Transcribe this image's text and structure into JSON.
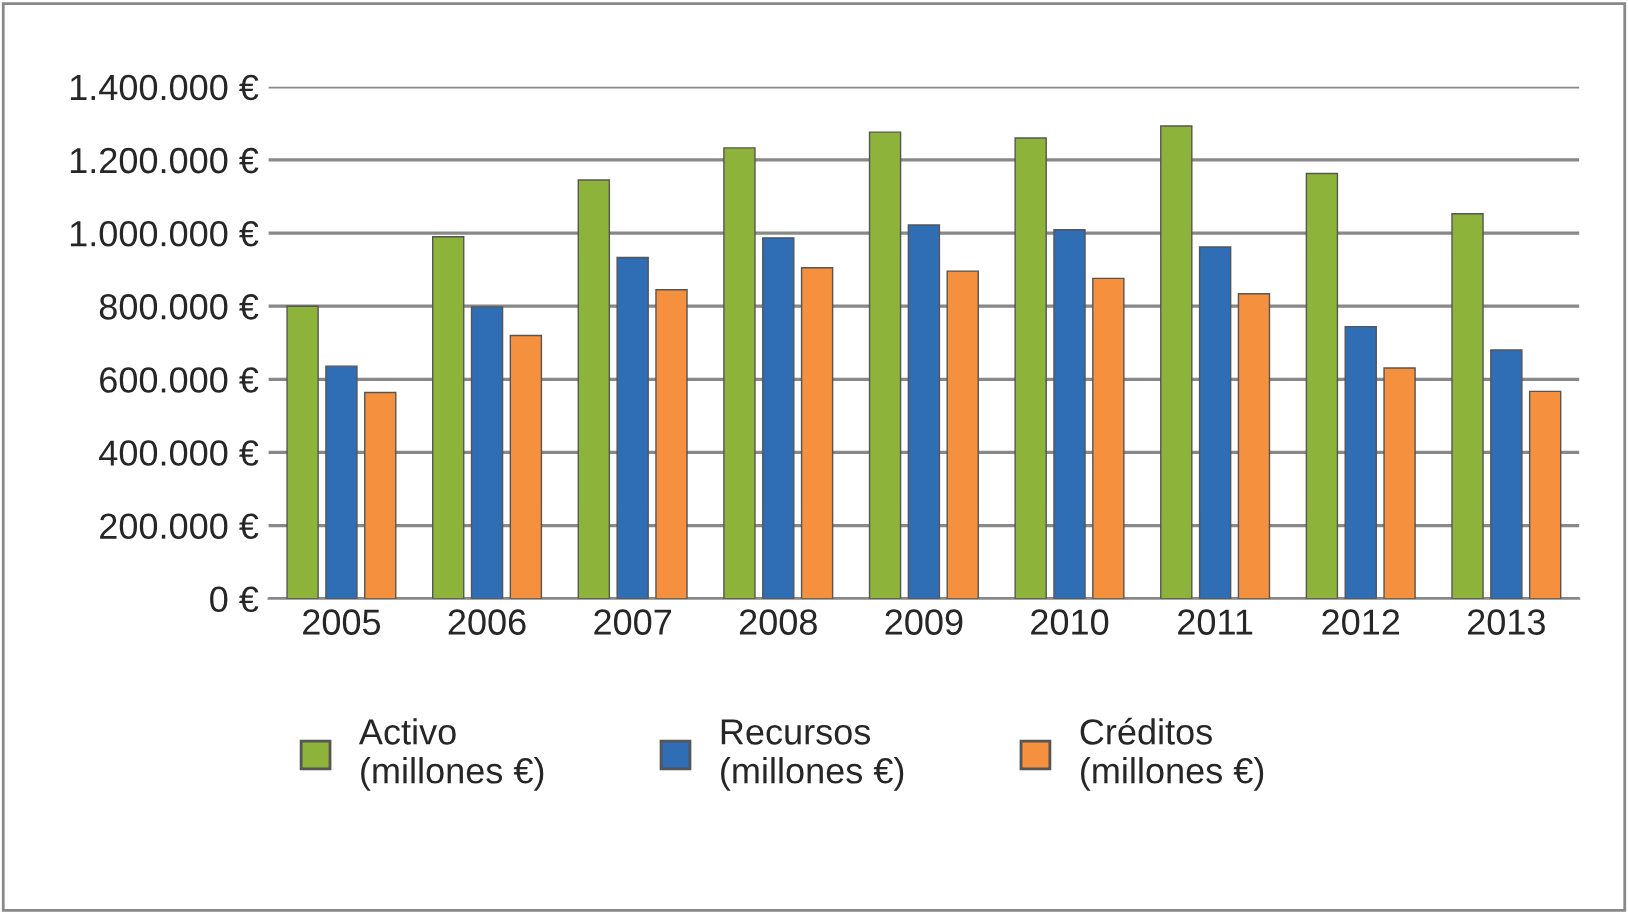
{
  "chart_data": {
    "type": "bar",
    "categories": [
      "2005",
      "2006",
      "2007",
      "2008",
      "2009",
      "2010",
      "2011",
      "2012",
      "2013"
    ],
    "series": [
      {
        "name": "Activo\n(millones €)",
        "color": "#8db33a",
        "values": [
          800000,
          990000,
          1145000,
          1233000,
          1276000,
          1260000,
          1293000,
          1163000,
          1053000
        ]
      },
      {
        "name": "Recursos\n(millones €)",
        "color": "#2f6db5",
        "values": [
          636000,
          798000,
          933000,
          987000,
          1022000,
          1009000,
          962000,
          744000,
          680000
        ]
      },
      {
        "name": "Créditos\n(millones €)",
        "color": "#f5913e",
        "values": [
          564000,
          720000,
          845000,
          905000,
          896000,
          876000,
          834000,
          631000,
          567000
        ]
      }
    ],
    "ylim": [
      0,
      1400000
    ],
    "yticks": [
      {
        "value": 0,
        "label": "0 €"
      },
      {
        "value": 200000,
        "label": "200.000 €"
      },
      {
        "value": 400000,
        "label": "400.000 €"
      },
      {
        "value": 600000,
        "label": "600.000 €"
      },
      {
        "value": 800000,
        "label": "800.000 €"
      },
      {
        "value": 1000000,
        "label": "1.000.000 €"
      },
      {
        "value": 1200000,
        "label": "1.200.000 €"
      },
      {
        "value": 1400000,
        "label": "1.400.000 €"
      }
    ],
    "grid": "y",
    "legend": "bottom"
  }
}
